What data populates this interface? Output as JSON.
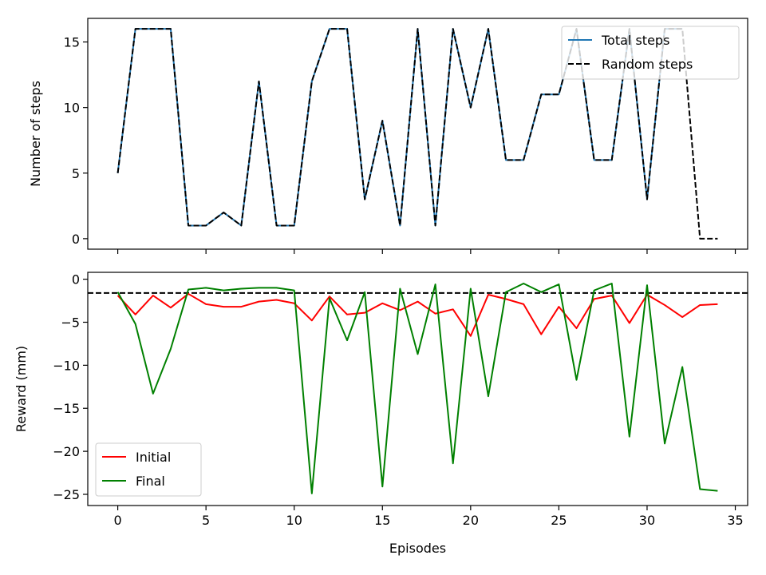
{
  "chart_data": [
    {
      "type": "line",
      "xlabel": "",
      "ylabel": "Number of steps",
      "xlim": [
        -1.7,
        35.7
      ],
      "ylim": [
        -0.8,
        16.8
      ],
      "xticks": [
        0,
        5,
        10,
        15,
        20,
        25,
        30,
        35
      ],
      "yticks": [
        0,
        5,
        10,
        15
      ],
      "show_xtick_labels": false,
      "grid": false,
      "legend": "top-right",
      "series": [
        {
          "name": "Total steps",
          "color": "#1f77b4",
          "style": "solid",
          "x": [
            0,
            1,
            2,
            3,
            4,
            5,
            6,
            7,
            8,
            9,
            10,
            11,
            12,
            13,
            14,
            15,
            16,
            17,
            18,
            19,
            20,
            21,
            22,
            23,
            24,
            25,
            26,
            27,
            28,
            29,
            30,
            31,
            32
          ],
          "values": [
            5,
            16,
            16,
            16,
            1,
            1,
            2,
            1,
            12,
            1,
            1,
            12,
            16,
            16,
            3,
            9,
            1,
            16,
            1,
            16,
            10,
            16,
            6,
            6,
            11,
            11,
            16,
            6,
            6,
            16,
            3,
            16,
            16
          ]
        },
        {
          "name": "Random steps",
          "color": "#000000",
          "style": "dashed",
          "x": [
            0,
            1,
            2,
            3,
            4,
            5,
            6,
            7,
            8,
            9,
            10,
            11,
            12,
            13,
            14,
            15,
            16,
            17,
            18,
            19,
            20,
            21,
            22,
            23,
            24,
            25,
            26,
            27,
            28,
            29,
            30,
            31,
            32,
            33,
            34
          ],
          "values": [
            5,
            16,
            16,
            16,
            1,
            1,
            2,
            1,
            12,
            1,
            1,
            12,
            16,
            16,
            3,
            9,
            1,
            16,
            1,
            16,
            10,
            16,
            6,
            6,
            11,
            11,
            16,
            6,
            6,
            16,
            3,
            16,
            16,
            0,
            0
          ]
        }
      ]
    },
    {
      "type": "line",
      "xlabel": "Episodes",
      "ylabel": "Reward (mm)",
      "xlim": [
        -1.7,
        35.7
      ],
      "ylim": [
        -26.3,
        0.8
      ],
      "xticks": [
        0,
        5,
        10,
        15,
        20,
        25,
        30,
        35
      ],
      "yticks": [
        0,
        -5,
        -10,
        -15,
        -20,
        -25
      ],
      "show_xtick_labels": true,
      "grid": false,
      "legend": "bottom-left",
      "hline": {
        "y": -1.6,
        "color": "#000000",
        "style": "dashed"
      },
      "series": [
        {
          "name": "Initial",
          "color": "#ff0000",
          "style": "solid",
          "x": [
            0,
            1,
            2,
            3,
            4,
            5,
            6,
            7,
            8,
            9,
            10,
            11,
            12,
            13,
            14,
            15,
            16,
            17,
            18,
            19,
            20,
            21,
            22,
            23,
            24,
            25,
            26,
            27,
            28,
            29,
            30,
            31,
            32,
            33,
            34
          ],
          "values": [
            -1.9,
            -4.1,
            -1.9,
            -3.3,
            -1.7,
            -2.9,
            -3.2,
            -3.2,
            -2.6,
            -2.4,
            -2.8,
            -4.8,
            -2.0,
            -4.1,
            -3.9,
            -2.8,
            -3.6,
            -2.6,
            -4.0,
            -3.5,
            -6.6,
            -1.8,
            -2.3,
            -2.9,
            -6.4,
            -3.2,
            -5.7,
            -2.3,
            -1.9,
            -5.1,
            -1.8,
            -3.0,
            -4.4,
            -3.0,
            -2.9
          ]
        },
        {
          "name": "Final",
          "color": "#008000",
          "style": "solid",
          "x": [
            0,
            1,
            2,
            3,
            4,
            5,
            6,
            7,
            8,
            9,
            10,
            11,
            12,
            13,
            14,
            15,
            16,
            17,
            18,
            19,
            20,
            21,
            22,
            23,
            24,
            25,
            26,
            27,
            28,
            29,
            30,
            31,
            32,
            33,
            34
          ],
          "values": [
            -1.5,
            -5.2,
            -13.3,
            -8.1,
            -1.2,
            -1.0,
            -1.3,
            -1.1,
            -1.0,
            -1.0,
            -1.3,
            -24.9,
            -2.2,
            -7.1,
            -1.5,
            -24.1,
            -1.1,
            -8.7,
            -0.6,
            -21.4,
            -1.1,
            -13.6,
            -1.5,
            -0.5,
            -1.5,
            -0.6,
            -11.7,
            -1.3,
            -0.5,
            -18.3,
            -0.7,
            -19.1,
            -10.2,
            -24.4,
            -24.6
          ]
        }
      ]
    }
  ]
}
